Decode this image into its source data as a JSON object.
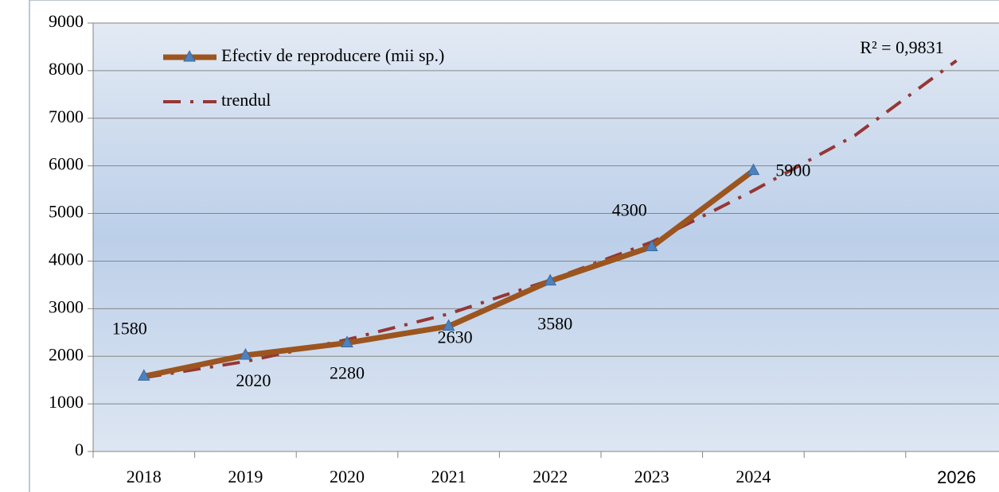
{
  "chart_data": {
    "type": "line",
    "categories": [
      "2018",
      "2019",
      "2020",
      "2021",
      "2022",
      "2023",
      "2024",
      null,
      "2026"
    ],
    "series": [
      {
        "name": "Efectiv de reproducere (mii sp.)",
        "color": "#9c551f",
        "marker": "triangle",
        "marker_color": "#4f81bd",
        "values": [
          1580,
          2020,
          2280,
          2630,
          3580,
          4300,
          5900,
          null,
          null
        ]
      },
      {
        "name": "trendul",
        "color": "#953735",
        "style": "dashdot",
        "values": [
          1550,
          1890,
          2350,
          2890,
          3600,
          4400,
          5480,
          6640,
          8210
        ]
      }
    ],
    "annotation": "R² = 0,9831",
    "ylim": [
      0,
      9000
    ],
    "yticks": [
      0,
      1000,
      2000,
      3000,
      4000,
      5000,
      6000,
      7000,
      8000,
      9000
    ],
    "grid": true,
    "legend": "upper left",
    "data_labels": true
  }
}
